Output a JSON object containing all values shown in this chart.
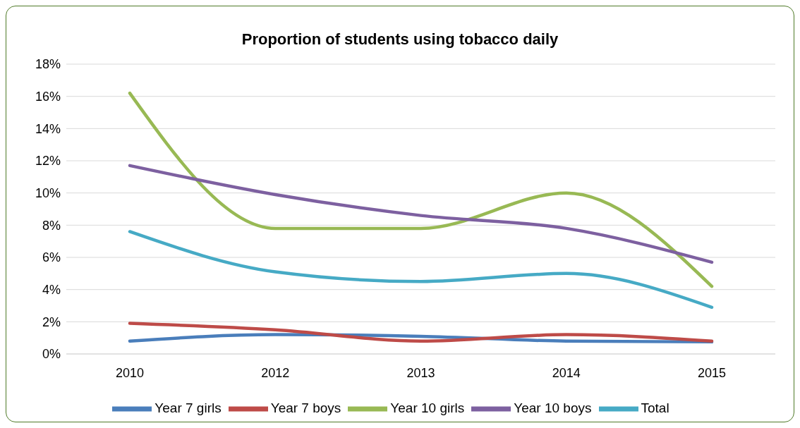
{
  "chart_data": {
    "type": "line",
    "title": "Proportion of students using tobacco daily",
    "categories": [
      "2010",
      "2012",
      "2013",
      "2014",
      "2015"
    ],
    "series": [
      {
        "name": "Year 7 girls",
        "color": "#4a7ebb",
        "values": [
          0.8,
          1.2,
          1.1,
          0.8,
          0.75
        ]
      },
      {
        "name": "Year 7 boys",
        "color": "#be4b48",
        "values": [
          1.9,
          1.5,
          0.8,
          1.2,
          0.8
        ]
      },
      {
        "name": "Year 10 girls",
        "color": "#98b954",
        "values": [
          16.2,
          7.8,
          7.8,
          10.0,
          4.2
        ]
      },
      {
        "name": "Year 10 boys",
        "color": "#7d60a0",
        "values": [
          11.7,
          9.9,
          8.6,
          7.8,
          5.7
        ]
      },
      {
        "name": "Total",
        "color": "#46aac5",
        "values": [
          7.6,
          5.1,
          4.5,
          5.0,
          2.9
        ]
      }
    ],
    "ylim": [
      0,
      18
    ],
    "yticks": [
      {
        "value": 0,
        "label": "0%"
      },
      {
        "value": 2,
        "label": "2%"
      },
      {
        "value": 4,
        "label": "4%"
      },
      {
        "value": 6,
        "label": "6%"
      },
      {
        "value": 8,
        "label": "8%"
      },
      {
        "value": 10,
        "label": "10%"
      },
      {
        "value": 12,
        "label": "12%"
      },
      {
        "value": 14,
        "label": "14%"
      },
      {
        "value": 16,
        "label": "16%"
      },
      {
        "value": 18,
        "label": "18%"
      }
    ],
    "grid": "y",
    "legend": "bottom",
    "marker": "none",
    "line_style": "solid"
  }
}
